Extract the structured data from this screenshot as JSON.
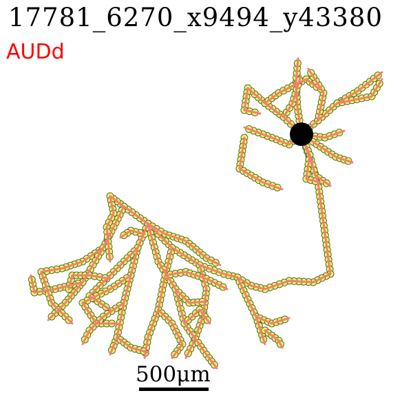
{
  "header": {
    "title": "17781_6270_x9494_y43380",
    "region": "AUDd"
  },
  "scale_bar": {
    "label": "500μm"
  },
  "colors": {
    "region": "#ff0000",
    "neurite": "#f08070",
    "node_fill": "#f2ef6a",
    "node_edge": "#556b2f",
    "soma": "#000000"
  }
}
